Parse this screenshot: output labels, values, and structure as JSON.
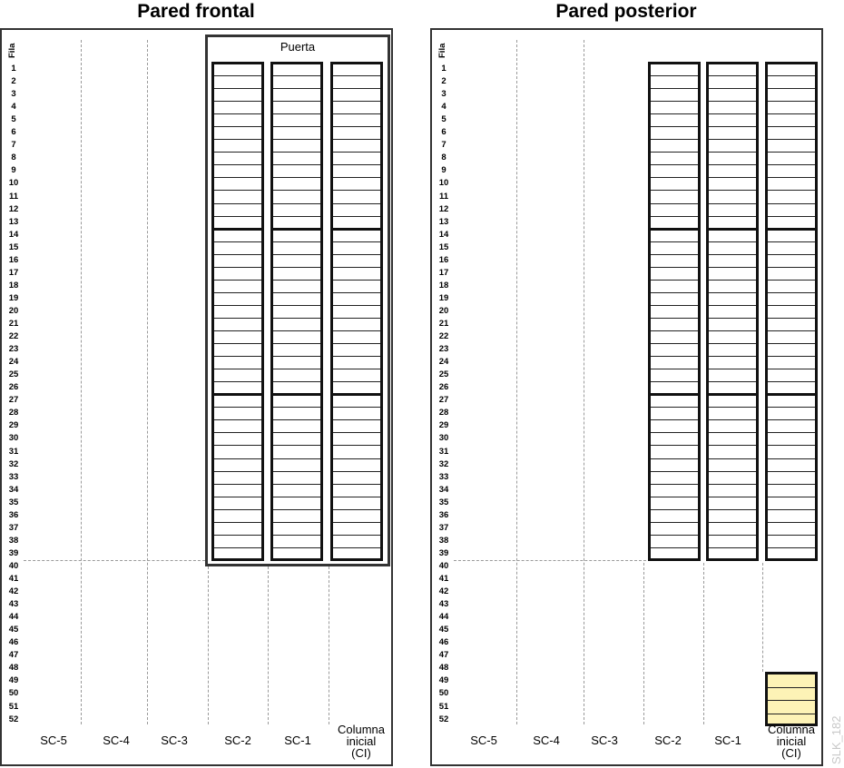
{
  "left_panel": {
    "title": "Pared frontal",
    "row_header": "Fila",
    "door_label": "Puerta",
    "columns": [
      "SC-5",
      "SC-4",
      "SC-3",
      "SC-2",
      "SC-1",
      "Columna\ninicial\n(CI)"
    ]
  },
  "right_panel": {
    "title": "Pared posterior",
    "row_header": "Fila",
    "columns": [
      "SC-5",
      "SC-4",
      "SC-3",
      "SC-2",
      "SC-1",
      "Columna\ninicial\n(CI)"
    ]
  },
  "rows": [
    "1",
    "2",
    "3",
    "4",
    "5",
    "6",
    "7",
    "8",
    "9",
    "10",
    "11",
    "12",
    "13",
    "14",
    "15",
    "16",
    "17",
    "18",
    "19",
    "20",
    "21",
    "22",
    "23",
    "24",
    "25",
    "26",
    "27",
    "28",
    "29",
    "30",
    "31",
    "32",
    "33",
    "34",
    "35",
    "36",
    "37",
    "38",
    "39",
    "40",
    "41",
    "42",
    "43",
    "44",
    "45",
    "46",
    "47",
    "48",
    "49",
    "50",
    "51",
    "52"
  ],
  "watermark": "SLK_182",
  "colors": {
    "frame": "#333333",
    "slot_line": "#222222",
    "guide_dashed": "#9a9a9a",
    "initial_column_fill": "#fdf3b6"
  }
}
